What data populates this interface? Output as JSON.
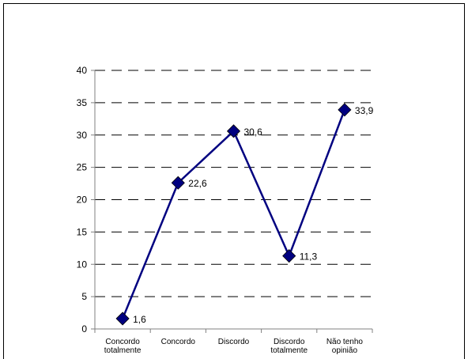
{
  "chart_data": {
    "type": "line",
    "title": "",
    "xlabel": "",
    "ylabel": "",
    "categories": [
      [
        "Concordo",
        "totalmente"
      ],
      [
        "Concordo"
      ],
      [
        "Discordo"
      ],
      [
        "Discordo",
        "totalmente"
      ],
      [
        "Não tenho",
        "opinião"
      ]
    ],
    "series": [
      {
        "values": [
          1.6,
          22.6,
          30.6,
          11.3,
          33.9
        ],
        "data_labels": [
          "1,6",
          "22,6",
          "30,6",
          "11,3",
          "33,9"
        ]
      }
    ],
    "ylim": [
      0,
      40
    ],
    "yticks": [
      "0",
      "5",
      "10",
      "15",
      "20",
      "25",
      "30",
      "35",
      "40"
    ],
    "grid": true,
    "legend": "none",
    "colors": {
      "series": "#000080",
      "grid": "#000000",
      "axis": "#808080"
    }
  }
}
